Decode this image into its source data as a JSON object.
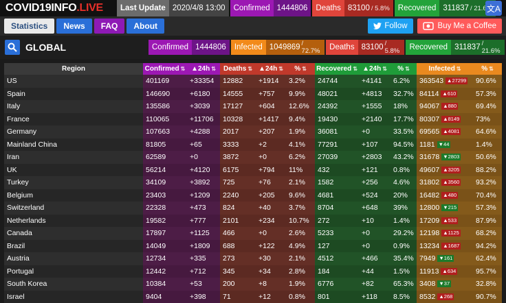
{
  "logo": {
    "part1": "COVID19INFO",
    "part2": ".LIVE"
  },
  "topbar": {
    "last_update_label": "Last Update",
    "last_update_value": "2020/4/8 13:00",
    "confirmed_label": "Confirmed",
    "confirmed_value": "1444806",
    "deaths_label": "Deaths",
    "deaths_value": "83100",
    "deaths_pct": "/ 5.8%",
    "recovered_label": "Recovered",
    "recovered_value": "311837",
    "recovered_pct": "/ 21.6%",
    "translate_icon": "文A"
  },
  "nav": {
    "tabs": [
      "Statistics",
      "News",
      "FAQ",
      "About"
    ],
    "follow_label": "Follow",
    "coffee_label": "Buy Me a Coffee"
  },
  "global": {
    "title": "GLOBAL",
    "confirmed_label": "Confirmed",
    "confirmed_value": "1444806",
    "infected_label": "Infected",
    "infected_value": "1049869",
    "infected_pct": "/ 72.7%",
    "deaths_label": "Deaths",
    "deaths_value": "83100",
    "deaths_pct": "/ 5.8%",
    "recovered_label": "Recovered",
    "recovered_value": "311837",
    "recovered_pct": "/ 21.6%"
  },
  "table": {
    "headers": {
      "region": "Region",
      "confirmed": "Confirmed",
      "conf_24h": "▲24h",
      "deaths": "Deaths",
      "dth_24h": "▲24h",
      "dth_pct": "%",
      "recovered": "Recovered",
      "rec_24h": "▲24h",
      "rec_pct": "%",
      "infected": "Infected",
      "inf_pct": "%"
    },
    "rows": [
      [
        "US",
        "401169",
        "+33354",
        "12882",
        "+1914",
        "3.2%",
        "24744",
        "+4141",
        "6.2%",
        "363543",
        "▲27299",
        "90.6%"
      ],
      [
        "Spain",
        "146690",
        "+6180",
        "14555",
        "+757",
        "9.9%",
        "48021",
        "+4813",
        "32.7%",
        "84114",
        "▲610",
        "57.3%"
      ],
      [
        "Italy",
        "135586",
        "+3039",
        "17127",
        "+604",
        "12.6%",
        "24392",
        "+1555",
        "18%",
        "94067",
        "▲880",
        "69.4%"
      ],
      [
        "France",
        "110065",
        "+11706",
        "10328",
        "+1417",
        "9.4%",
        "19430",
        "+2140",
        "17.7%",
        "80307",
        "▲8149",
        "73%"
      ],
      [
        "Germany",
        "107663",
        "+4288",
        "2017",
        "+207",
        "1.9%",
        "36081",
        "+0",
        "33.5%",
        "69565",
        "▲4081",
        "64.6%"
      ],
      [
        "Mainland China",
        "81805",
        "+65",
        "3333",
        "+2",
        "4.1%",
        "77291",
        "+107",
        "94.5%",
        "1181",
        "▼44",
        "1.4%"
      ],
      [
        "Iran",
        "62589",
        "+0",
        "3872",
        "+0",
        "6.2%",
        "27039",
        "+2803",
        "43.2%",
        "31678",
        "▼2803",
        "50.6%"
      ],
      [
        "UK",
        "56214",
        "+4120",
        "6175",
        "+794",
        "11%",
        "432",
        "+121",
        "0.8%",
        "49607",
        "▲3205",
        "88.2%"
      ],
      [
        "Turkey",
        "34109",
        "+3892",
        "725",
        "+76",
        "2.1%",
        "1582",
        "+256",
        "4.6%",
        "31802",
        "▲3560",
        "93.2%"
      ],
      [
        "Belgium",
        "23403",
        "+1209",
        "2240",
        "+205",
        "9.6%",
        "4681",
        "+524",
        "20%",
        "16482",
        "▲480",
        "70.4%"
      ],
      [
        "Switzerland",
        "22328",
        "+473",
        "824",
        "+40",
        "3.7%",
        "8704",
        "+648",
        "39%",
        "12800",
        "▼215",
        "57.3%"
      ],
      [
        "Netherlands",
        "19582",
        "+777",
        "2101",
        "+234",
        "10.7%",
        "272",
        "+10",
        "1.4%",
        "17209",
        "▲533",
        "87.9%"
      ],
      [
        "Canada",
        "17897",
        "+1125",
        "466",
        "+0",
        "2.6%",
        "5233",
        "+0",
        "29.2%",
        "12198",
        "▲1125",
        "68.2%"
      ],
      [
        "Brazil",
        "14049",
        "+1809",
        "688",
        "+122",
        "4.9%",
        "127",
        "+0",
        "0.9%",
        "13234",
        "▲1687",
        "94.2%"
      ],
      [
        "Austria",
        "12734",
        "+335",
        "273",
        "+30",
        "2.1%",
        "4512",
        "+466",
        "35.4%",
        "7949",
        "▼161",
        "62.4%"
      ],
      [
        "Portugal",
        "12442",
        "+712",
        "345",
        "+34",
        "2.8%",
        "184",
        "+44",
        "1.5%",
        "11913",
        "▲634",
        "95.7%"
      ],
      [
        "South Korea",
        "10384",
        "+53",
        "200",
        "+8",
        "1.9%",
        "6776",
        "+82",
        "65.3%",
        "3408",
        "▼37",
        "32.8%"
      ],
      [
        "Israel",
        "9404",
        "+398",
        "71",
        "+12",
        "0.8%",
        "801",
        "+118",
        "8.5%",
        "8532",
        "▲268",
        "90.7%"
      ]
    ]
  }
}
